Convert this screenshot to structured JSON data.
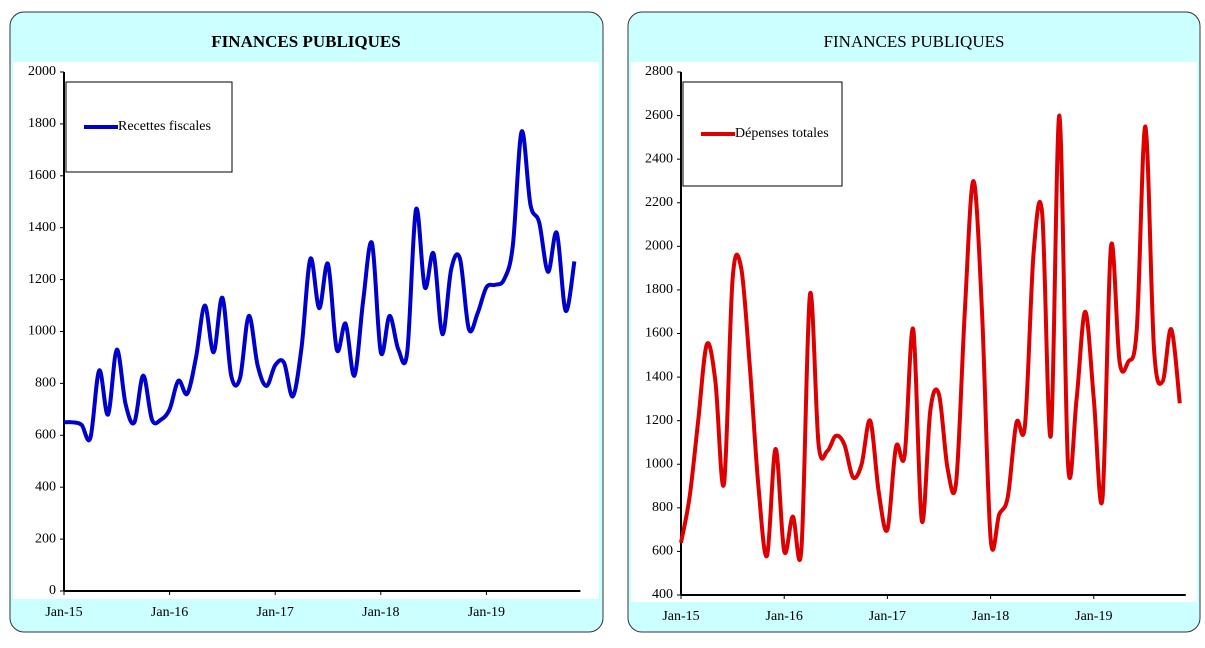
{
  "chart_data": [
    {
      "type": "line",
      "title": "FINANCES PUBLIQUES",
      "categories": [
        "Jan-15",
        null,
        null,
        null,
        null,
        null,
        null,
        null,
        null,
        null,
        null,
        null,
        "Jan-16",
        null,
        null,
        null,
        null,
        null,
        null,
        null,
        null,
        null,
        null,
        null,
        "Jan-17",
        null,
        null,
        null,
        null,
        null,
        null,
        null,
        null,
        null,
        null,
        null,
        "Jan-18",
        null,
        null,
        null,
        null,
        null,
        null,
        null,
        null,
        null,
        null,
        null,
        "Jan-19",
        null,
        null,
        null,
        null,
        null,
        null,
        null,
        null,
        null,
        null
      ],
      "series": [
        {
          "name": "Recettes fiscales",
          "color": "#0000cc",
          "values": [
            650,
            650,
            640,
            590,
            850,
            680,
            930,
            720,
            650,
            830,
            660,
            660,
            700,
            810,
            760,
            900,
            1100,
            920,
            1130,
            830,
            820,
            1060,
            870,
            790,
            870,
            880,
            750,
            940,
            1280,
            1090,
            1260,
            930,
            1030,
            830,
            1120,
            1340,
            920,
            1060,
            930,
            920,
            1470,
            1170,
            1300,
            990,
            1240,
            1280,
            1010,
            1070,
            1170,
            1180,
            1200,
            1330,
            1770,
            1490,
            1420,
            1230,
            1380,
            1080,
            1270
          ]
        }
      ],
      "ylim": [
        0,
        2000
      ],
      "yticks": [
        0,
        200,
        400,
        600,
        800,
        1000,
        1200,
        1400,
        1600,
        1800,
        2000
      ],
      "grid": false,
      "legend": "upper left"
    },
    {
      "type": "line",
      "title": "FINANCES PUBLIQUES",
      "categories": [
        "Jan-15",
        null,
        null,
        null,
        null,
        null,
        null,
        null,
        null,
        null,
        null,
        null,
        "Jan-16",
        null,
        null,
        null,
        null,
        null,
        null,
        null,
        null,
        null,
        null,
        null,
        "Jan-17",
        null,
        null,
        null,
        null,
        null,
        null,
        null,
        null,
        null,
        null,
        null,
        "Jan-18",
        null,
        null,
        null,
        null,
        null,
        null,
        null,
        null,
        null,
        null,
        null,
        "Jan-19",
        null,
        null,
        null,
        null,
        null,
        null,
        null,
        null,
        null,
        null
      ],
      "series": [
        {
          "name": "Dépenses totales",
          "color": "#dd0000",
          "values": [
            640,
            850,
            1200,
            1550,
            1380,
            910,
            1850,
            1900,
            1450,
            900,
            580,
            1070,
            600,
            760,
            610,
            1780,
            1090,
            1060,
            1130,
            1090,
            940,
            1000,
            1200,
            870,
            700,
            1080,
            1040,
            1620,
            740,
            1250,
            1320,
            980,
            920,
            1700,
            2300,
            1700,
            660,
            770,
            850,
            1190,
            1180,
            1970,
            2150,
            1130,
            2600,
            1000,
            1300,
            1700,
            1300,
            840,
            2000,
            1470,
            1470,
            1620,
            2550,
            1530,
            1380,
            1620,
            1280
          ]
        }
      ],
      "ylim": [
        400,
        2800
      ],
      "yticks": [
        400,
        600,
        800,
        1000,
        1200,
        1400,
        1600,
        1800,
        2000,
        2200,
        2400,
        2600,
        2800
      ],
      "grid": false,
      "legend": "upper left"
    }
  ]
}
